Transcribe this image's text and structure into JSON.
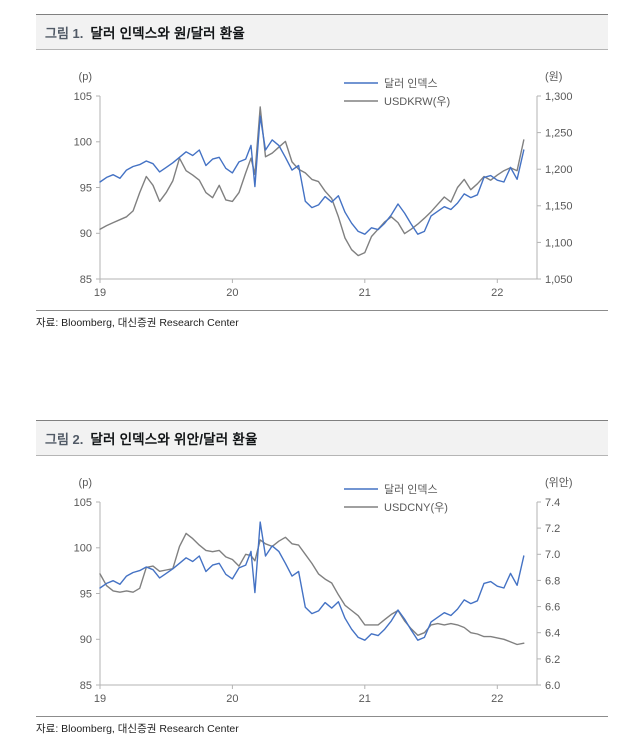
{
  "figures": [
    {
      "label": "그림 1.",
      "title": "달러 인덱스와 원/달러 환율",
      "source": "자료: Bloomberg, 대신증권 Research Center"
    },
    {
      "label": "그림 2.",
      "title": "달러 인덱스와 위안/달러 환율",
      "source": "자료: Bloomberg, 대신증권 Research Center"
    }
  ],
  "colors": {
    "dollar_index_line": "#4472c4",
    "fx_line": "#808080",
    "axis": "#b3b3b3",
    "tick_text": "#595959"
  },
  "chart_data": [
    {
      "type": "line",
      "grid": false,
      "legend_position": "top-right-inside",
      "left_axis": {
        "unit": "(p)",
        "min": 85,
        "max": 105,
        "ticks": [
          85,
          90,
          95,
          100,
          105
        ],
        "tick_labels": [
          "85",
          "90",
          "95",
          "100",
          "105"
        ]
      },
      "right_axis": {
        "unit": "(원)",
        "min": 1050,
        "max": 1300,
        "ticks": [
          1050,
          1100,
          1150,
          1200,
          1250,
          1300
        ],
        "tick_labels": [
          "1,050",
          "1,100",
          "1,150",
          "1,200",
          "1,250",
          "1,300"
        ]
      },
      "x_axis": {
        "min": 19,
        "max": 22.3,
        "ticks": [
          19,
          20,
          21,
          22
        ],
        "tick_labels": [
          "19",
          "20",
          "21",
          "22"
        ]
      },
      "legend": [
        {
          "label": "달러 인덱스",
          "color": "#4472c4"
        },
        {
          "label": "USDKRW(우)",
          "color": "#808080"
        }
      ],
      "x": [
        19,
        19.05,
        19.1,
        19.15,
        19.2,
        19.25,
        19.3,
        19.35,
        19.4,
        19.45,
        19.5,
        19.55,
        19.6,
        19.65,
        19.7,
        19.75,
        19.8,
        19.85,
        19.9,
        19.95,
        20,
        20.05,
        20.1,
        20.14,
        20.17,
        20.21,
        20.25,
        20.3,
        20.35,
        20.4,
        20.45,
        20.5,
        20.55,
        20.6,
        20.65,
        20.7,
        20.75,
        20.8,
        20.85,
        20.9,
        20.95,
        21,
        21.05,
        21.1,
        21.15,
        21.2,
        21.25,
        21.3,
        21.35,
        21.4,
        21.45,
        21.5,
        21.55,
        21.6,
        21.65,
        21.7,
        21.75,
        21.8,
        21.85,
        21.9,
        21.95,
        22,
        22.05,
        22.1,
        22.15,
        22.2
      ],
      "series": [
        {
          "name": "달러 인덱스",
          "axis": "left",
          "color": "#4472c4",
          "values": [
            95.6,
            96.1,
            96.4,
            96,
            96.9,
            97.3,
            97.5,
            97.9,
            97.6,
            96.7,
            97.2,
            97.7,
            98.3,
            98.9,
            98.5,
            99.1,
            97.4,
            98.1,
            98.3,
            97.1,
            96.6,
            97.8,
            98.1,
            99.6,
            95.1,
            102.8,
            99.1,
            100.2,
            99.6,
            98.3,
            96.9,
            97.4,
            93.5,
            92.8,
            93.1,
            94,
            93.4,
            94.1,
            92.3,
            91.1,
            90.2,
            89.9,
            90.6,
            90.4,
            91.1,
            92,
            93.2,
            92.2,
            91,
            89.9,
            90.2,
            91.9,
            92.4,
            92.9,
            92.6,
            93.3,
            94.3,
            93.9,
            94.2,
            96.1,
            96.3,
            95.8,
            95.6,
            97.2,
            95.9,
            99.1
          ]
        },
        {
          "name": "USDKRW(우)",
          "axis": "right",
          "color": "#808080",
          "values": [
            1118,
            1123,
            1127,
            1131,
            1135,
            1143,
            1168,
            1190,
            1178,
            1156,
            1168,
            1184,
            1215,
            1198,
            1192,
            1185,
            1168,
            1161,
            1178,
            1158,
            1156,
            1168,
            1195,
            1215,
            1193,
            1285,
            1217,
            1222,
            1230,
            1238,
            1210,
            1200,
            1195,
            1186,
            1183,
            1170,
            1160,
            1135,
            1106,
            1090,
            1082,
            1086,
            1108,
            1118,
            1128,
            1135,
            1127,
            1112,
            1118,
            1125,
            1133,
            1142,
            1152,
            1162,
            1155,
            1175,
            1186,
            1172,
            1180,
            1190,
            1185,
            1192,
            1198,
            1202,
            1198,
            1240
          ]
        }
      ]
    },
    {
      "type": "line",
      "grid": false,
      "legend_position": "top-right-inside",
      "left_axis": {
        "unit": "(p)",
        "min": 85,
        "max": 105,
        "ticks": [
          85,
          90,
          95,
          100,
          105
        ],
        "tick_labels": [
          "85",
          "90",
          "95",
          "100",
          "105"
        ]
      },
      "right_axis": {
        "unit": "(위안)",
        "min": 6.0,
        "max": 7.4,
        "ticks": [
          6.0,
          6.2,
          6.4,
          6.6,
          6.8,
          7.0,
          7.2,
          7.4
        ],
        "tick_labels": [
          "6.0",
          "6.2",
          "6.4",
          "6.6",
          "6.8",
          "7.0",
          "7.2",
          "7.4"
        ]
      },
      "x_axis": {
        "min": 19,
        "max": 22.3,
        "ticks": [
          19,
          20,
          21,
          22
        ],
        "tick_labels": [
          "19",
          "20",
          "21",
          "22"
        ]
      },
      "legend": [
        {
          "label": "달러 인덱스",
          "color": "#4472c4"
        },
        {
          "label": "USDCNY(우)",
          "color": "#808080"
        }
      ],
      "x": [
        19,
        19.05,
        19.1,
        19.15,
        19.2,
        19.25,
        19.3,
        19.35,
        19.4,
        19.45,
        19.5,
        19.55,
        19.6,
        19.65,
        19.7,
        19.75,
        19.8,
        19.85,
        19.9,
        19.95,
        20,
        20.05,
        20.1,
        20.14,
        20.17,
        20.21,
        20.25,
        20.3,
        20.35,
        20.4,
        20.45,
        20.5,
        20.55,
        20.6,
        20.65,
        20.7,
        20.75,
        20.8,
        20.85,
        20.9,
        20.95,
        21,
        21.05,
        21.1,
        21.15,
        21.2,
        21.25,
        21.3,
        21.35,
        21.4,
        21.45,
        21.5,
        21.55,
        21.6,
        21.65,
        21.7,
        21.75,
        21.8,
        21.85,
        21.9,
        21.95,
        22,
        22.05,
        22.1,
        22.15,
        22.2
      ],
      "series": [
        {
          "name": "달러 인덱스",
          "axis": "left",
          "color": "#4472c4",
          "values": [
            95.6,
            96.1,
            96.4,
            96,
            96.9,
            97.3,
            97.5,
            97.9,
            97.6,
            96.7,
            97.2,
            97.7,
            98.3,
            98.9,
            98.5,
            99.1,
            97.4,
            98.1,
            98.3,
            97.1,
            96.6,
            97.8,
            98.1,
            99.6,
            95.1,
            102.8,
            99.1,
            100.2,
            99.6,
            98.3,
            96.9,
            97.4,
            93.5,
            92.8,
            93.1,
            94,
            93.4,
            94.1,
            92.3,
            91.1,
            90.2,
            89.9,
            90.6,
            90.4,
            91.1,
            92,
            93.2,
            92.2,
            91,
            89.9,
            90.2,
            91.9,
            92.4,
            92.9,
            92.6,
            93.3,
            94.3,
            93.9,
            94.2,
            96.1,
            96.3,
            95.8,
            95.6,
            97.2,
            95.9,
            99.1
          ]
        },
        {
          "name": "USDCNY(우)",
          "axis": "right",
          "color": "#808080",
          "values": [
            6.85,
            6.76,
            6.72,
            6.71,
            6.72,
            6.71,
            6.74,
            6.9,
            6.91,
            6.87,
            6.88,
            6.89,
            7.06,
            7.16,
            7.12,
            7.07,
            7.03,
            7.02,
            7.03,
            6.98,
            6.96,
            6.91,
            7,
            6.99,
            6.95,
            7.11,
            7.08,
            7.06,
            7.1,
            7.13,
            7.08,
            7.07,
            7,
            6.93,
            6.85,
            6.81,
            6.78,
            6.69,
            6.61,
            6.57,
            6.53,
            6.46,
            6.46,
            6.46,
            6.5,
            6.54,
            6.57,
            6.49,
            6.43,
            6.38,
            6.4,
            6.46,
            6.47,
            6.46,
            6.47,
            6.46,
            6.44,
            6.4,
            6.39,
            6.37,
            6.37,
            6.36,
            6.35,
            6.33,
            6.31,
            6.32
          ]
        }
      ]
    }
  ]
}
